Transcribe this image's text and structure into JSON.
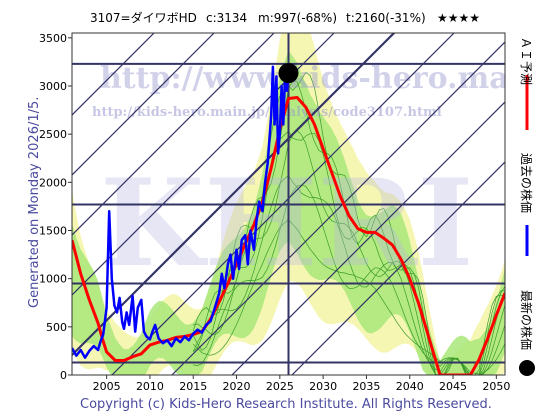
{
  "header": {
    "title": "3107=ダイワボHD",
    "current": "c:3134",
    "min": "m:997(-68%)",
    "target": "t:2160(-31%)",
    "stars": "★★★★"
  },
  "watermark": {
    "url": "http://www.kids-hero.main.jp/",
    "path": "http://kids-hero.main.jp/analysis/code3107.html",
    "logo": "KHRI"
  },
  "side_text": "Generated on Monday 2026/1/5.",
  "footer": "Copyright (c) Kids-Hero Research Institute. All Rights Reserved.",
  "legend": {
    "ai": "ＡＩ予測",
    "past": "過去の株価",
    "latest": "最新の株価"
  },
  "colors": {
    "ai": "#ff0000",
    "past": "#0000ff",
    "latest": "#000000",
    "band_green": "#a8e878",
    "band_yellow": "#f4f4a0",
    "grid": "#333366"
  },
  "chart_data": {
    "type": "line",
    "xlim": [
      2001,
      2051
    ],
    "ylim": [
      0,
      3550
    ],
    "x_ticks": [
      2005,
      2010,
      2015,
      2020,
      2025,
      2030,
      2035,
      2040,
      2045,
      2050
    ],
    "y_ticks": [
      0,
      500,
      1000,
      1500,
      2000,
      2500,
      3000,
      3500
    ],
    "h_lines": [
      130,
      950,
      1770,
      3230
    ],
    "v_line": 2026,
    "latest_point": {
      "x": 2026.0,
      "y": 3134
    },
    "series": [
      {
        "name": "過去の株価",
        "x": [
          2001.0,
          2001.5,
          2002.0,
          2002.5,
          2003.0,
          2003.5,
          2004.0,
          2004.3,
          2004.6,
          2005.0,
          2005.3,
          2005.6,
          2005.9,
          2006.2,
          2006.5,
          2006.8,
          2007.0,
          2007.3,
          2007.6,
          2008.0,
          2008.3,
          2008.6,
          2009.0,
          2009.3,
          2009.6,
          2010.0,
          2010.3,
          2010.6,
          2011.0,
          2011.5,
          2012.0,
          2012.5,
          2013.0,
          2013.5,
          2014.0,
          2014.5,
          2015.0,
          2015.5,
          2016.0,
          2016.5,
          2017.0,
          2017.5,
          2018.0,
          2018.3,
          2018.6,
          2019.0,
          2019.3,
          2019.6,
          2020.0,
          2020.3,
          2020.6,
          2021.0,
          2021.3,
          2021.6,
          2022.0,
          2022.3,
          2022.6,
          2023.0,
          2023.3,
          2023.6,
          2024.0,
          2024.2,
          2024.4,
          2024.6,
          2024.8,
          2025.0,
          2025.2,
          2025.4,
          2025.6,
          2025.8,
          2026.0
        ],
        "y": [
          280,
          200,
          260,
          180,
          250,
          300,
          260,
          350,
          420,
          700,
          1700,
          1000,
          720,
          650,
          800,
          550,
          480,
          650,
          520,
          820,
          450,
          700,
          780,
          450,
          400,
          370,
          450,
          520,
          380,
          330,
          360,
          300,
          380,
          340,
          400,
          360,
          430,
          470,
          440,
          520,
          560,
          700,
          850,
          1050,
          900,
          1150,
          1250,
          1000,
          1300,
          1100,
          1400,
          1450,
          1150,
          1500,
          1300,
          1600,
          1800,
          1700,
          2000,
          2200,
          2700,
          3200,
          2600,
          3100,
          2300,
          2500,
          3000,
          2600,
          3100,
          2950,
          3134
        ]
      },
      {
        "name": "ＡＩ予測",
        "x": [
          2001.0,
          2002.0,
          2003.0,
          2004.0,
          2004.5,
          2005.0,
          2006.0,
          2007.0,
          2008.0,
          2009.0,
          2010.0,
          2011.0,
          2012.0,
          2013.0,
          2014.0,
          2015.0,
          2016.0,
          2017.0,
          2018.0,
          2019.0,
          2020.0,
          2021.0,
          2022.0,
          2023.0,
          2024.0,
          2025.0,
          2026.0,
          2027.0,
          2028.0,
          2029.0,
          2030.0,
          2031.0,
          2032.0,
          2033.0,
          2034.0,
          2035.0,
          2036.0,
          2037.0,
          2038.0,
          2039.0,
          2040.0,
          2041.0,
          2042.0,
          2043.0,
          2043.5,
          2046.0,
          2047.0,
          2048.0,
          2049.0,
          2050.0,
          2051.0
        ],
        "y": [
          1400,
          1050,
          780,
          540,
          380,
          240,
          150,
          150,
          190,
          220,
          310,
          340,
          360,
          390,
          400,
          420,
          450,
          580,
          760,
          950,
          1150,
          1360,
          1560,
          1800,
          2150,
          2550,
          2870,
          2880,
          2780,
          2600,
          2350,
          2100,
          1850,
          1650,
          1520,
          1480,
          1480,
          1420,
          1350,
          1200,
          1000,
          750,
          450,
          150,
          0,
          0,
          0,
          160,
          380,
          620,
          850
        ]
      }
    ]
  }
}
